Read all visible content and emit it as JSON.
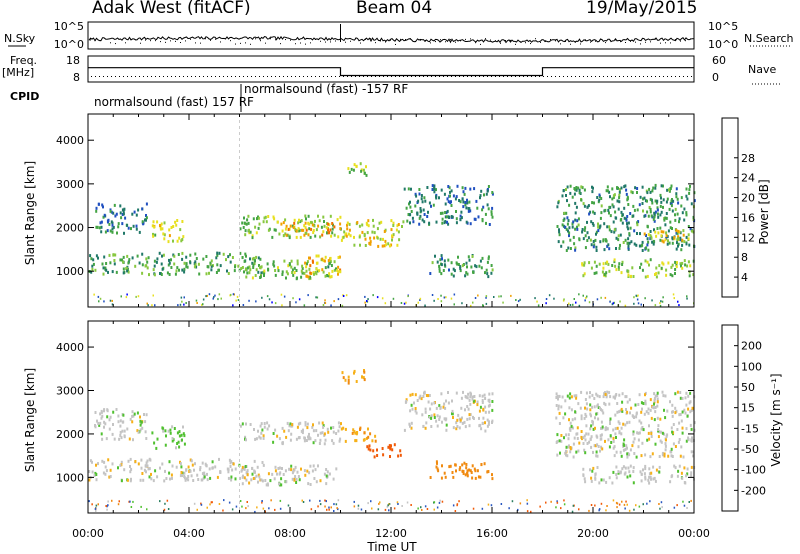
{
  "header": {
    "station": "Adak West (fitACF)",
    "beam": "Beam 04",
    "date": "19/May/2015"
  },
  "strip_labels": {
    "nsky": "N.Sky",
    "nsearch": "N.Search",
    "freq": "Freq.",
    "freq_unit": "[MHz]",
    "nave": "Nave",
    "cpid": "CPID"
  },
  "strip_ticks": {
    "noise_left": [
      "10^5",
      "10^0"
    ],
    "noise_right": [
      "10^5",
      "10^0"
    ],
    "freq_left": [
      "18",
      "8"
    ],
    "freq_right": [
      "60",
      "0"
    ]
  },
  "cpid_labels": [
    {
      "text": "normalsound (fast) 157 RF",
      "start": "00:00"
    },
    {
      "text": "normalsound (fast) -157 RF",
      "start": "06:00"
    }
  ],
  "colorbars": {
    "power": {
      "label": "Power [dB]",
      "ticks": [
        "28",
        "24",
        "20",
        "16",
        "12",
        "8",
        "4"
      ],
      "colors": [
        "#0000ff",
        "#2050c0",
        "#207868",
        "#44a444",
        "#88c840",
        "#e8e020",
        "#f0a000",
        "#f07000",
        "#ff0000"
      ]
    },
    "velocity": {
      "label": "Velocity [m s⁻¹]",
      "ticks": [
        "200",
        "100",
        "50",
        "15",
        "-15",
        "-50",
        "-100",
        "-200"
      ],
      "colors": [
        "#1a1aaa",
        "#2a58c0",
        "#2c7f60",
        "#50c030",
        "#c4c4c4",
        "#f6b018",
        "#f08a10",
        "#f05a08",
        "#ff0000"
      ]
    }
  },
  "chart_data": {
    "type": "heatmap",
    "title": "Adak West (fitACF) Beam 04 19/May/2015",
    "xlabel": "Time UT",
    "ylabel": "Slant Range [km]",
    "x_ticks": [
      "00:00",
      "04:00",
      "08:00",
      "12:00",
      "16:00",
      "20:00",
      "00:00"
    ],
    "y_ticks": [
      "1000",
      "2000",
      "3000",
      "4000"
    ],
    "xlim_hours": [
      0,
      24
    ],
    "ylim_km": [
      180,
      4600
    ],
    "frequency": {
      "segments": [
        {
          "from_h": 0,
          "to_h": 10,
          "mhz": 13.5
        },
        {
          "from_h": 10,
          "to_h": 18,
          "mhz": 10.5
        },
        {
          "from_h": 18,
          "to_h": 24,
          "mhz": 13.5
        }
      ]
    },
    "panels": [
      {
        "name": "Power",
        "unit": "dB",
        "regions": [
          {
            "t0": 0.2,
            "t1": 2.3,
            "r0": 1900,
            "r1": 2600,
            "value": 10
          },
          {
            "t0": 0.0,
            "t1": 7.0,
            "r0": 950,
            "r1": 1450,
            "value": 14
          },
          {
            "t0": 2.5,
            "t1": 3.8,
            "r0": 1700,
            "r1": 2200,
            "value": 20
          },
          {
            "t0": 6.0,
            "t1": 10.0,
            "r0": 1800,
            "r1": 2300,
            "value": 18
          },
          {
            "t0": 6.0,
            "t1": 9.8,
            "r0": 850,
            "r1": 1300,
            "value": 16
          },
          {
            "t0": 7.5,
            "t1": 10.0,
            "r0": 1850,
            "r1": 2150,
            "value": 26
          },
          {
            "t0": 8.5,
            "t1": 10.0,
            "r0": 900,
            "r1": 1400,
            "value": 24
          },
          {
            "t0": 10.0,
            "t1": 12.5,
            "r0": 1600,
            "r1": 2200,
            "value": 22
          },
          {
            "t0": 10.0,
            "t1": 11.0,
            "r0": 3200,
            "r1": 3500,
            "value": 18
          },
          {
            "t0": 12.5,
            "t1": 16.0,
            "r0": 2100,
            "r1": 3000,
            "value": 10
          },
          {
            "t0": 13.5,
            "t1": 16.0,
            "r0": 900,
            "r1": 1400,
            "value": 12
          },
          {
            "t0": 18.5,
            "t1": 24.0,
            "r0": 1500,
            "r1": 3000,
            "value": 12
          },
          {
            "t0": 19.5,
            "t1": 24.0,
            "r0": 900,
            "r1": 1300,
            "value": 18
          },
          {
            "t0": 22.0,
            "t1": 24.0,
            "r0": 1700,
            "r1": 2000,
            "value": 22
          }
        ]
      },
      {
        "name": "Velocity",
        "unit": "m s^-1",
        "regions": [
          {
            "t0": 0.2,
            "t1": 2.3,
            "r0": 1900,
            "r1": 2600,
            "value": 0
          },
          {
            "t0": 0.0,
            "t1": 7.0,
            "r0": 950,
            "r1": 1450,
            "value": 0
          },
          {
            "t0": 2.5,
            "t1": 3.8,
            "r0": 1700,
            "r1": 2200,
            "value": 30
          },
          {
            "t0": 6.0,
            "t1": 10.0,
            "r0": 1800,
            "r1": 2300,
            "value": 0
          },
          {
            "t0": 6.0,
            "t1": 9.8,
            "r0": 850,
            "r1": 1300,
            "value": 0
          },
          {
            "t0": 10.0,
            "t1": 11.5,
            "r0": 1850,
            "r1": 2200,
            "value": -40
          },
          {
            "t0": 11.0,
            "t1": 12.5,
            "r0": 1500,
            "r1": 1800,
            "value": -120
          },
          {
            "t0": 10.0,
            "t1": 11.0,
            "r0": 3200,
            "r1": 3500,
            "value": -40
          },
          {
            "t0": 13.5,
            "t1": 16.0,
            "r0": 1000,
            "r1": 1400,
            "value": -80
          },
          {
            "t0": 12.5,
            "t1": 16.0,
            "r0": 2100,
            "r1": 3000,
            "value": 0
          },
          {
            "t0": 18.5,
            "t1": 24.0,
            "r0": 1500,
            "r1": 3000,
            "value": 0
          },
          {
            "t0": 19.5,
            "t1": 24.0,
            "r0": 900,
            "r1": 1300,
            "value": 0
          }
        ]
      }
    ]
  }
}
